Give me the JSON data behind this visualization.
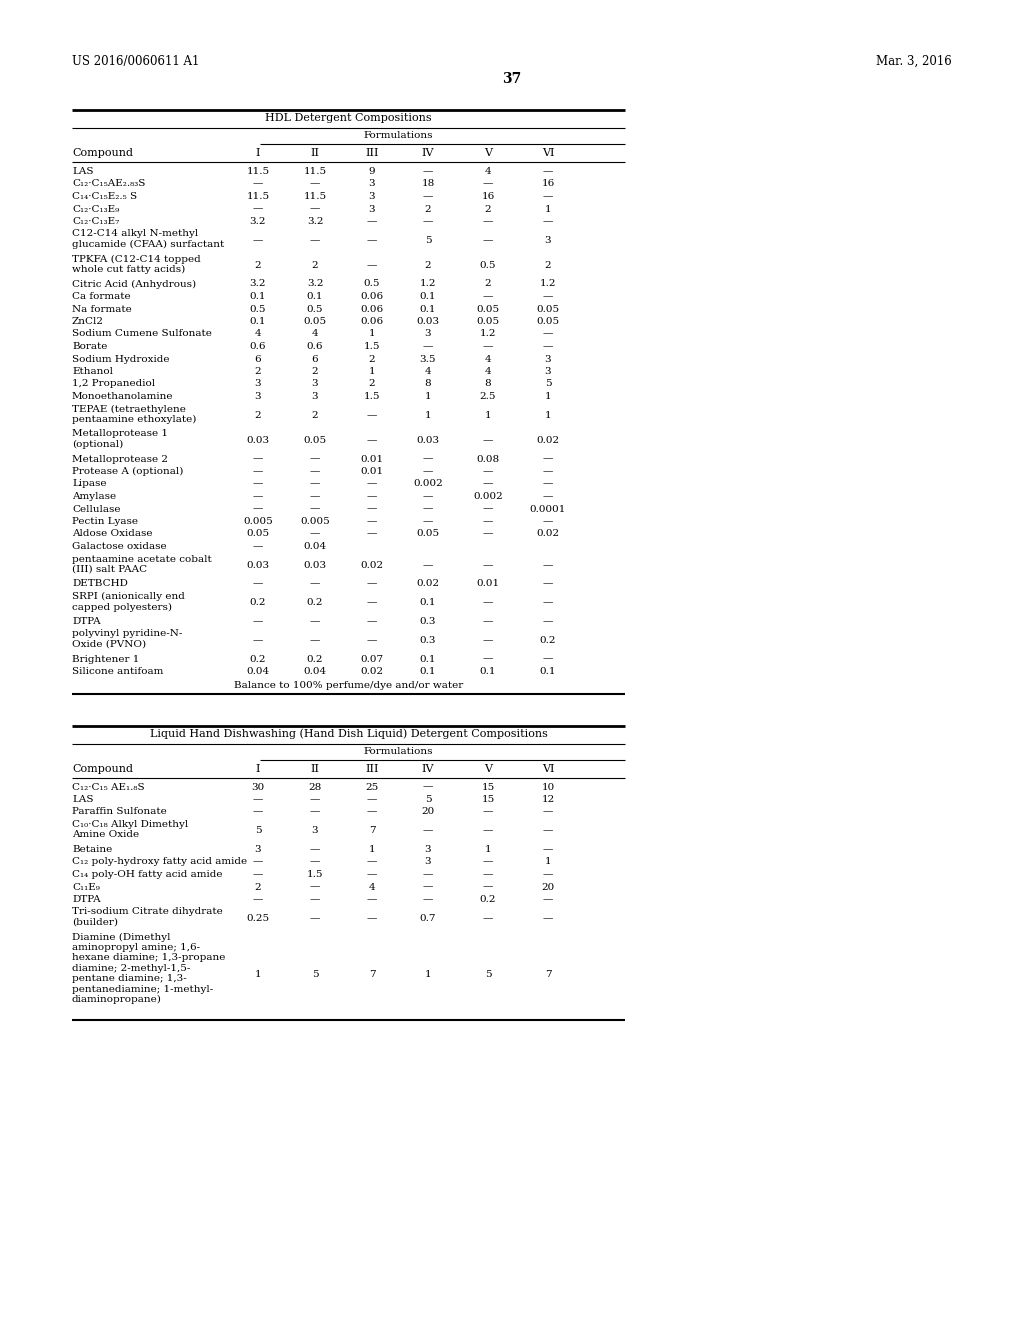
{
  "page_header_left": "US 2016/0060611 A1",
  "page_header_right": "Mar. 3, 2016",
  "page_number": "37",
  "background_color": "#ffffff",
  "table1_title": "HDL Detergent Compositions",
  "table1_subtitle": "Formulations",
  "table1_col_headers": [
    "Compound",
    "I",
    "II",
    "III",
    "IV",
    "V",
    "VI"
  ],
  "table1_rows": [
    [
      "LAS",
      "11.5",
      "11.5",
      "9",
      "—",
      "4",
      "—"
    ],
    [
      "C₁₂·C₁₅AE₂.₈₃S",
      "—",
      "—",
      "3",
      "18",
      "—",
      "16"
    ],
    [
      "C₁₄·C₁₅E₂.₅ S",
      "11.5",
      "11.5",
      "3",
      "—",
      "16",
      "—"
    ],
    [
      "C₁₂·C₁₃E₉",
      "—",
      "—",
      "3",
      "2",
      "2",
      "1"
    ],
    [
      "C₁₂·C₁₃E₇",
      "3.2",
      "3.2",
      "—",
      "—",
      "—",
      "—"
    ],
    [
      "C12-C14 alkyl N-methyl\nglucamide (CFAA) surfactant",
      "—",
      "—",
      "—",
      "5",
      "—",
      "3"
    ],
    [
      "TPKFA (C12-C14 topped\nwhole cut fatty acids)",
      "2",
      "2",
      "—",
      "2",
      "0.5",
      "2"
    ],
    [
      "Citric Acid (Anhydrous)",
      "3.2",
      "3.2",
      "0.5",
      "1.2",
      "2",
      "1.2"
    ],
    [
      "Ca formate",
      "0.1",
      "0.1",
      "0.06",
      "0.1",
      "—",
      "—"
    ],
    [
      "Na formate",
      "0.5",
      "0.5",
      "0.06",
      "0.1",
      "0.05",
      "0.05"
    ],
    [
      "ZnCl2",
      "0.1",
      "0.05",
      "0.06",
      "0.03",
      "0.05",
      "0.05"
    ],
    [
      "Sodium Cumene Sulfonate",
      "4",
      "4",
      "1",
      "3",
      "1.2",
      "—"
    ],
    [
      "Borate",
      "0.6",
      "0.6",
      "1.5",
      "—",
      "—",
      "—"
    ],
    [
      "Sodium Hydroxide",
      "6",
      "6",
      "2",
      "3.5",
      "4",
      "3"
    ],
    [
      "Ethanol",
      "2",
      "2",
      "1",
      "4",
      "4",
      "3"
    ],
    [
      "1,2 Propanediol",
      "3",
      "3",
      "2",
      "8",
      "8",
      "5"
    ],
    [
      "Monoethanolamine",
      "3",
      "3",
      "1.5",
      "1",
      "2.5",
      "1"
    ],
    [
      "TEPAE (tetraethylene\npentaamine ethoxylate)",
      "2",
      "2",
      "—",
      "1",
      "1",
      "1"
    ],
    [
      "Metalloprotease 1\n(optional)",
      "0.03",
      "0.05",
      "—",
      "0.03",
      "—",
      "0.02"
    ],
    [
      "Metalloprotease 2",
      "—",
      "—",
      "0.01",
      "—",
      "0.08",
      "—"
    ],
    [
      "Protease A (optional)",
      "—",
      "—",
      "0.01",
      "—",
      "—",
      "—"
    ],
    [
      "Lipase",
      "—",
      "—",
      "—",
      "0.002",
      "—",
      "—"
    ],
    [
      "Amylase",
      "—",
      "—",
      "—",
      "—",
      "0.002",
      "—"
    ],
    [
      "Cellulase",
      "—",
      "—",
      "—",
      "—",
      "—",
      "0.0001"
    ],
    [
      "Pectin Lyase",
      "0.005",
      "0.005",
      "—",
      "—",
      "—",
      "—"
    ],
    [
      "Aldose Oxidase",
      "0.05",
      "—",
      "—",
      "0.05",
      "—",
      "0.02"
    ],
    [
      "Galactose oxidase",
      "—",
      "0.04",
      "",
      "",
      "",
      ""
    ],
    [
      "pentaamine acetate cobalt\n(III) salt PAAC",
      "0.03",
      "0.03",
      "0.02",
      "—",
      "—",
      "—"
    ],
    [
      "DETBCHD",
      "—",
      "—",
      "—",
      "0.02",
      "0.01",
      "—"
    ],
    [
      "SRPI (anionically end\ncapped polyesters)",
      "0.2",
      "0.2",
      "—",
      "0.1",
      "—",
      "—"
    ],
    [
      "DTPA",
      "—",
      "—",
      "—",
      "0.3",
      "—",
      "—"
    ],
    [
      "polyvinyl pyridine-N-\nOxide (PVNO)",
      "—",
      "—",
      "—",
      "0.3",
      "—",
      "0.2"
    ],
    [
      "Brightener 1",
      "0.2",
      "0.2",
      "0.07",
      "0.1",
      "—",
      "—"
    ],
    [
      "Silicone antifoam",
      "0.04",
      "0.04",
      "0.02",
      "0.1",
      "0.1",
      "0.1"
    ]
  ],
  "table1_footer": "Balance to 100% perfume/dye and/or water",
  "table2_title": "Liquid Hand Dishwashing (Hand Dish Liquid) Detergent Compositions",
  "table2_subtitle": "Formulations",
  "table2_col_headers": [
    "Compound",
    "I",
    "II",
    "III",
    "IV",
    "V",
    "VI"
  ],
  "table2_rows": [
    [
      "C₁₂·C₁₅ AE₁.₈S",
      "30",
      "28",
      "25",
      "—",
      "15",
      "10"
    ],
    [
      "LAS",
      "—",
      "—",
      "—",
      "5",
      "15",
      "12"
    ],
    [
      "Paraffin Sulfonate",
      "—",
      "—",
      "—",
      "20",
      "—",
      "—"
    ],
    [
      "C₁₀·C₁₈ Alkyl Dimethyl\nAmine Oxide",
      "5",
      "3",
      "7",
      "—",
      "—",
      "—"
    ],
    [
      "Betaine",
      "3",
      "—",
      "1",
      "3",
      "1",
      "—"
    ],
    [
      "C₁₂ poly-hydroxy fatty acid amide",
      "—",
      "—",
      "—",
      "3",
      "—",
      "1"
    ],
    [
      "C₁₄ poly-OH fatty acid amide",
      "—",
      "1.5",
      "—",
      "—",
      "—",
      "—"
    ],
    [
      "C₁₁E₉",
      "2",
      "—",
      "4",
      "—",
      "—",
      "20"
    ],
    [
      "DTPA",
      "—",
      "—",
      "—",
      "—",
      "0.2",
      "—"
    ],
    [
      "Tri-sodium Citrate dihydrate\n(builder)",
      "0.25",
      "—",
      "—",
      "0.7",
      "—",
      "—"
    ],
    [
      "Diamine (Dimethyl\naminopropyl amine; 1,6-\nhexane diamine; 1,3-propane\ndiamine; 2-methyl-1,5-\npentane diamine; 1,3-\npentanediamine; 1-methyl-\ndiaminopropane)",
      "1",
      "5",
      "7",
      "1",
      "5",
      "7"
    ]
  ]
}
